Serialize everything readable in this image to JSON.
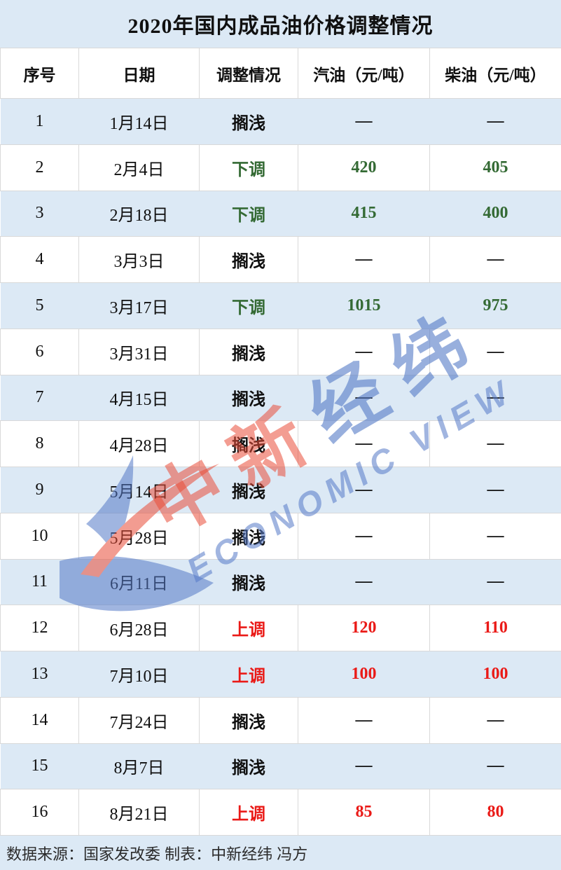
{
  "title": "2020年国内成品油价格调整情况",
  "table": {
    "headers": [
      "序号",
      "日期",
      "调整情况",
      "汽油（元/吨）",
      "柴油（元/吨）"
    ],
    "rows": [
      {
        "no": "1",
        "date": "1月14日",
        "status": "搁浅",
        "gas": "—",
        "diesel": "—",
        "type": "hold"
      },
      {
        "no": "2",
        "date": "2月4日",
        "status": "下调",
        "gas": "420",
        "diesel": "405",
        "type": "down"
      },
      {
        "no": "3",
        "date": "2月18日",
        "status": "下调",
        "gas": "415",
        "diesel": "400",
        "type": "down"
      },
      {
        "no": "4",
        "date": "3月3日",
        "status": "搁浅",
        "gas": "—",
        "diesel": "—",
        "type": "hold"
      },
      {
        "no": "5",
        "date": "3月17日",
        "status": "下调",
        "gas": "1015",
        "diesel": "975",
        "type": "down"
      },
      {
        "no": "6",
        "date": "3月31日",
        "status": "搁浅",
        "gas": "—",
        "diesel": "—",
        "type": "hold"
      },
      {
        "no": "7",
        "date": "4月15日",
        "status": "搁浅",
        "gas": "—",
        "diesel": "—",
        "type": "hold"
      },
      {
        "no": "8",
        "date": "4月28日",
        "status": "搁浅",
        "gas": "—",
        "diesel": "—",
        "type": "hold"
      },
      {
        "no": "9",
        "date": "5月14日",
        "status": "搁浅",
        "gas": "—",
        "diesel": "—",
        "type": "hold"
      },
      {
        "no": "10",
        "date": "5月28日",
        "status": "搁浅",
        "gas": "—",
        "diesel": "—",
        "type": "hold"
      },
      {
        "no": "11",
        "date": "6月11日",
        "status": "搁浅",
        "gas": "—",
        "diesel": "—",
        "type": "hold"
      },
      {
        "no": "12",
        "date": "6月28日",
        "status": "上调",
        "gas": "120",
        "diesel": "110",
        "type": "up"
      },
      {
        "no": "13",
        "date": "7月10日",
        "status": "上调",
        "gas": "100",
        "diesel": "100",
        "type": "up"
      },
      {
        "no": "14",
        "date": "7月24日",
        "status": "搁浅",
        "gas": "—",
        "diesel": "—",
        "type": "hold"
      },
      {
        "no": "15",
        "date": "8月7日",
        "status": "搁浅",
        "gas": "—",
        "diesel": "—",
        "type": "hold"
      },
      {
        "no": "16",
        "date": "8月21日",
        "status": "上调",
        "gas": "85",
        "diesel": "80",
        "type": "up"
      }
    ]
  },
  "footer": "数据来源：国家发改委 制表：中新经纬 冯方",
  "watermark": {
    "cn_red": "中新",
    "cn_blue": "经纬",
    "en": "ECONOMIC VIEW"
  },
  "colors": {
    "row_blue": "#dce9f5",
    "status_up_red": "#ea1a17",
    "status_down_green": "#346a34",
    "watermark_red": "#e94c38",
    "watermark_blue": "#5479c7"
  },
  "chart_data": {
    "type": "table",
    "title": "2020年国内成品油价格调整情况",
    "columns": [
      "序号",
      "日期",
      "调整情况",
      "汽油（元/吨）",
      "柴油（元/吨）"
    ],
    "rows": [
      [
        "1",
        "1月14日",
        "搁浅",
        null,
        null
      ],
      [
        "2",
        "2月4日",
        "下调",
        420,
        405
      ],
      [
        "3",
        "2月18日",
        "下调",
        415,
        400
      ],
      [
        "4",
        "3月3日",
        "搁浅",
        null,
        null
      ],
      [
        "5",
        "3月17日",
        "下调",
        1015,
        975
      ],
      [
        "6",
        "3月31日",
        "搁浅",
        null,
        null
      ],
      [
        "7",
        "4月15日",
        "搁浅",
        null,
        null
      ],
      [
        "8",
        "4月28日",
        "搁浅",
        null,
        null
      ],
      [
        "9",
        "5月14日",
        "搁浅",
        null,
        null
      ],
      [
        "10",
        "5月28日",
        "搁浅",
        null,
        null
      ],
      [
        "11",
        "6月11日",
        "搁浅",
        null,
        null
      ],
      [
        "12",
        "6月28日",
        "上调",
        120,
        110
      ],
      [
        "13",
        "7月10日",
        "上调",
        100,
        100
      ],
      [
        "14",
        "7月24日",
        "搁浅",
        null,
        null
      ],
      [
        "15",
        "8月7日",
        "搁浅",
        null,
        null
      ],
      [
        "16",
        "8月21日",
        "上调",
        85,
        80
      ]
    ],
    "source_note": "数据来源：国家发改委 制表：中新经纬 冯方"
  }
}
